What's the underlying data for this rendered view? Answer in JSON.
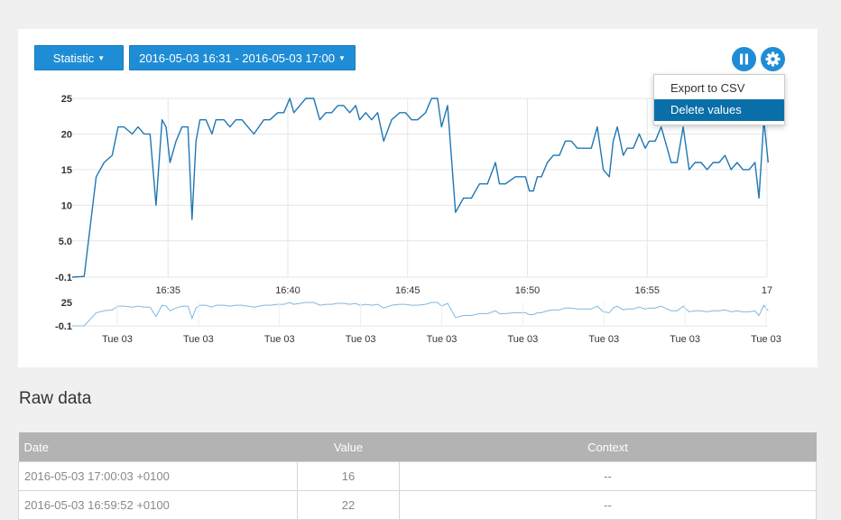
{
  "toolbar": {
    "statistic_label": "Statistic",
    "range_label": "2016-05-03 16:31 - 2016-05-03 17:00"
  },
  "menu": {
    "items": [
      {
        "label": "Export to CSV",
        "active": false
      },
      {
        "label": "Delete values",
        "active": true
      }
    ]
  },
  "colors": {
    "accent": "#1f8dd6",
    "line": "#1f77b4",
    "menu_active": "#0a6fa8",
    "table_header": "#b3b3b3"
  },
  "icons": {
    "pause": "pause-icon",
    "settings": "gear-icon"
  },
  "chart_data": {
    "type": "line",
    "y_ticks": [
      "25",
      "20",
      "15",
      "10",
      "5.0",
      "-0.1"
    ],
    "x_ticks": [
      "16:35",
      "16:40",
      "16:45",
      "16:50",
      "16:55",
      "17"
    ],
    "ylim": [
      -0.1,
      25
    ],
    "xlim": [
      "16:31",
      "17:00"
    ],
    "grid": true,
    "series": [
      {
        "x": [
          "16:31:00",
          "16:31:30",
          "16:32:00",
          "16:32:20",
          "16:32:40",
          "16:32:55",
          "16:33:10",
          "16:33:30",
          "16:33:45",
          "16:34:00",
          "16:34:15",
          "16:34:30",
          "16:34:45",
          "16:34:55",
          "16:35:05",
          "16:35:20",
          "16:35:35",
          "16:35:50",
          "16:36:00",
          "16:36:10",
          "16:36:20",
          "16:36:35",
          "16:36:50",
          "16:37:00",
          "16:37:20",
          "16:37:35",
          "16:37:50",
          "16:38:05",
          "16:38:20",
          "16:38:35",
          "16:39:00",
          "16:39:15",
          "16:39:35",
          "16:39:50",
          "16:40:05",
          "16:40:15",
          "16:40:30",
          "16:40:45",
          "16:41:05",
          "16:41:20",
          "16:41:35",
          "16:41:50",
          "16:42:05",
          "16:42:20",
          "16:42:35",
          "16:42:50",
          "16:43:00",
          "16:43:15",
          "16:43:30",
          "16:43:45",
          "16:44:00",
          "16:44:20",
          "16:44:40",
          "16:44:55",
          "16:45:10",
          "16:45:25",
          "16:45:45",
          "16:46:00",
          "16:46:15",
          "16:46:25",
          "16:46:40",
          "16:47:00",
          "16:47:20",
          "16:47:40",
          "16:48:00",
          "16:48:20",
          "16:48:40",
          "16:48:50",
          "16:49:05",
          "16:49:30",
          "16:49:55",
          "16:50:05",
          "16:50:15",
          "16:50:25",
          "16:50:35",
          "16:50:50",
          "16:51:05",
          "16:51:20",
          "16:51:35",
          "16:51:50",
          "16:52:05",
          "16:52:20",
          "16:52:40",
          "16:52:55",
          "16:53:10",
          "16:53:25",
          "16:53:35",
          "16:53:45",
          "16:54:00",
          "16:54:10",
          "16:54:25",
          "16:54:40",
          "16:54:55",
          "16:55:05",
          "16:55:20",
          "16:55:35",
          "16:55:50",
          "16:56:00",
          "16:56:15",
          "16:56:30",
          "16:56:45",
          "16:57:00",
          "16:57:15",
          "16:57:30",
          "16:57:45",
          "16:58:00",
          "16:58:15",
          "16:58:30",
          "16:58:45",
          "16:59:00",
          "16:59:15",
          "16:59:30",
          "16:59:40",
          "16:59:52",
          "17:00:03"
        ],
        "values": [
          -0.1,
          0,
          14,
          16,
          17,
          21,
          21,
          20,
          21,
          20,
          20,
          10,
          22,
          21,
          16,
          19,
          21,
          21,
          8,
          19,
          22,
          22,
          20,
          22,
          22,
          21,
          22,
          22,
          21,
          20,
          22,
          22,
          23,
          23,
          25,
          23,
          24,
          25,
          25,
          22,
          23,
          23,
          24,
          24,
          23,
          24,
          22,
          23,
          22,
          23,
          19,
          22,
          23,
          23,
          22,
          22,
          23,
          25,
          25,
          21,
          24,
          9,
          11,
          11,
          13,
          13,
          16,
          13,
          13,
          14,
          14,
          12,
          12,
          14,
          14,
          16,
          17,
          17,
          19,
          19,
          18,
          18,
          18,
          21,
          15,
          14,
          19,
          21,
          17,
          18,
          18,
          20,
          18,
          19,
          19,
          21,
          18,
          16,
          16,
          21,
          15,
          16,
          16,
          15,
          16,
          16,
          17,
          15,
          16,
          15,
          15,
          16,
          11,
          22,
          16
        ]
      }
    ],
    "overview_ticks": [
      "Tue 03",
      "Tue 03",
      "Tue 03",
      "Tue 03",
      "Tue 03",
      "Tue 03",
      "Tue 03",
      "Tue 03",
      "Tue 03"
    ],
    "overview_y_ticks": [
      "25",
      "-0.1"
    ]
  },
  "raw": {
    "title": "Raw data",
    "columns": [
      "Date",
      "Value",
      "Context"
    ],
    "rows": [
      {
        "date": "2016-05-03 17:00:03 +0100",
        "value": "16",
        "context": "--"
      },
      {
        "date": "2016-05-03 16:59:52 +0100",
        "value": "22",
        "context": "--"
      }
    ]
  }
}
